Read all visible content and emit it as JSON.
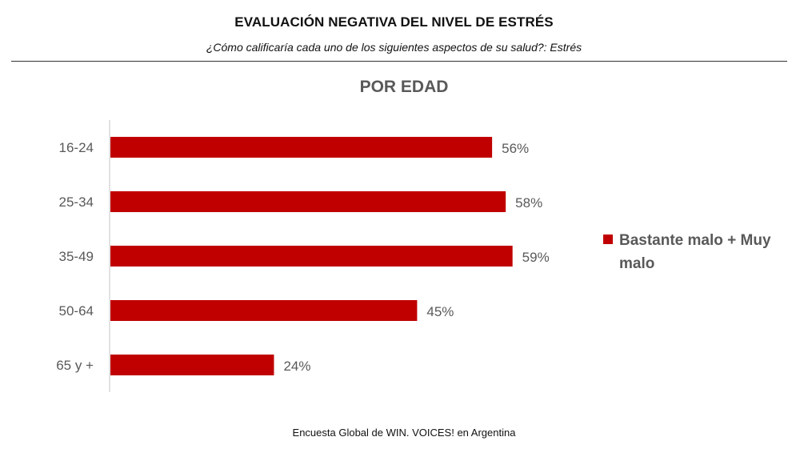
{
  "header": {
    "title": "EVALUACIÓN NEGATIVA DEL NIVEL DE ESTRÉS",
    "subtitle": "¿Cómo calificaría cada uno de los siguientes aspectos de su salud?: Estrés"
  },
  "chart_data": {
    "type": "bar",
    "orientation": "horizontal",
    "title": "POR EDAD",
    "categories": [
      "16-24",
      "25-34",
      "35-49",
      "50-64",
      "65 y +"
    ],
    "series": [
      {
        "name": "Bastante malo + Muy malo",
        "values": [
          56,
          58,
          59,
          45,
          24
        ],
        "labels": [
          "56%",
          "58%",
          "59%",
          "45%",
          "24%"
        ],
        "color": "#c00000"
      }
    ],
    "xlim": [
      0,
      100
    ],
    "unit": "%",
    "grid": false,
    "legend_position": "right"
  },
  "footer": {
    "source": "Encuesta Global de WIN. VOICES! en Argentina"
  },
  "colors": {
    "bar": "#c00000",
    "axis": "#d9d9d9",
    "muted_text": "#595959"
  }
}
